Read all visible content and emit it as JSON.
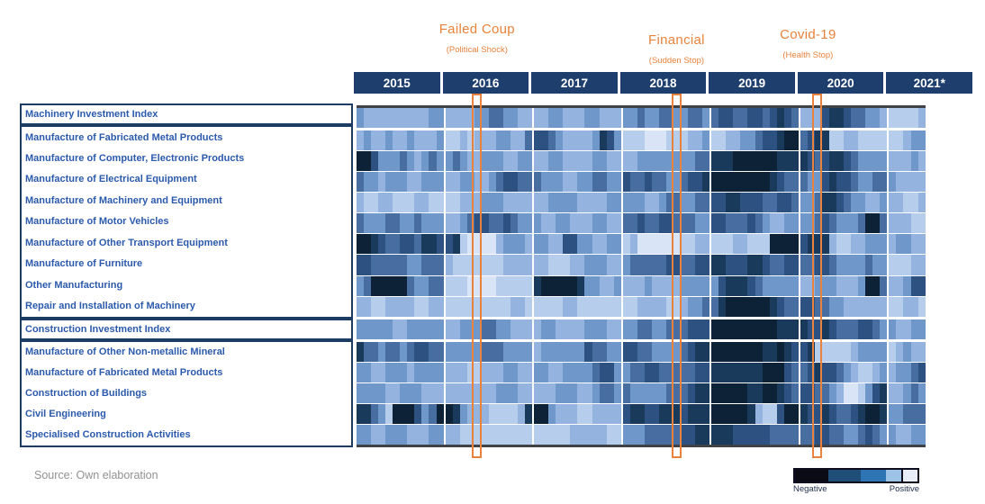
{
  "colors": {
    "header_bg": "#1e3f6d",
    "label_blue": "#2b5aad",
    "annotation_orange": "#e8823c",
    "border_dark": "#3f4348"
  },
  "header": {
    "years": [
      "2015",
      "2016",
      "2017",
      "2018",
      "2019",
      "2020",
      "2021*"
    ]
  },
  "title_annotations": [
    {
      "title": "Failed Coup",
      "subtitle": "(Political Shock)"
    },
    {
      "title": "Financial",
      "subtitle": "(Sudden Stop)"
    },
    {
      "title": "Covid-19",
      "subtitle": "(Health  Stop)"
    }
  ],
  "legend": {
    "negative_label": "Negative",
    "positive_label": "Positive",
    "colors": [
      "#0b0b16",
      "#1f4e79",
      "#2e75b6",
      "#9dc3e6",
      "#e9edf8"
    ],
    "widths_pct": [
      27,
      27,
      20,
      13,
      13
    ]
  },
  "source": "Source: Own elaboration",
  "chart_data": {
    "type": "heatmap",
    "title": "",
    "x_years": [
      "2015",
      "2016",
      "2017",
      "2018",
      "2019",
      "2020",
      "2021*"
    ],
    "months_per_year": [
      12,
      12,
      12,
      12,
      12,
      12,
      5
    ],
    "x_unit": "month",
    "value_scale": "digits 0-7 per monthly cell; 0 = most negative (darkest), 7 = most positive (lightest)",
    "palette": [
      "#0d2137",
      "#1a3a5c",
      "#2d5181",
      "#476da1",
      "#7097c9",
      "#94b3de",
      "#b7cdec",
      "#d9e4f6"
    ],
    "event_markers": [
      {
        "label": "Failed Coup",
        "year": "2016",
        "month": 5
      },
      {
        "label": "Financial",
        "year": "2018",
        "month": 8
      },
      {
        "label": "Covid-19",
        "year": "2020",
        "month": 3
      }
    ],
    "rows": [
      {
        "label": "Machinery Investment Index",
        "group": "machinery-index",
        "values": [
          "455555555544",
          "555544334455",
          "554455544555",
          "443443344334",
          "322332232123",
          "555211233445",
          "66665"
        ]
      },
      {
        "label": "Manufacture of Fabricated Metal Products",
        "group": "machinery",
        "values": [
          "545545545554",
          "665655544553",
          "223455554124",
          "666777666554",
          "665544322100",
          "321166556666",
          "66544"
        ]
      },
      {
        "label": "Manufacture of Computer, Electronic Products",
        "group": "machinery",
        "values": [
          "002444345434",
          "434554445544",
          "554455554455",
          "554444444433",
          "111000000111",
          "123211234444",
          "55545"
        ]
      },
      {
        "label": "Manufacture of Electrical Equipment",
        "group": "machinery",
        "values": [
          "344544455444",
          "554455432233",
          "344455443344",
          "233233443221",
          "000000001233",
          "344212234433",
          "45555"
        ]
      },
      {
        "label": "Manufacture of Machinery and Equipment",
        "group": "machinery",
        "values": [
          "566556665566",
          "665554445555",
          "554444555544",
          "444554334433",
          "221122233223",
          "443112344554",
          "55665"
        ]
      },
      {
        "label": "Manufacture of Motor Vehicles",
        "group": "machinery",
        "values": [
          "344433443444",
          "554322332344",
          "455445554455",
          "332332233344",
          "223332345544",
          "443234443003",
          "55566"
        ]
      },
      {
        "label": "Manufacture of Other Transport Equipment",
        "group": "machinery",
        "values": [
          "001233223112",
          "216777754445",
          "445522445544",
          "657777776655",
          "666556660000",
          "211156655444",
          "54455"
        ]
      },
      {
        "label": "Manufacture of Furniture",
        "group": "machinery",
        "values": [
          "223333344333",
          "566666665555",
          "556665544455",
          "433333223322",
          "112221123322",
          "332234444344",
          "66655"
        ]
      },
      {
        "label": "Other Manufacturing",
        "group": "machinery",
        "values": [
          "430000034433",
          "666777766666",
          "100000144554",
          "555455554444",
          "421112344444",
          "554445554003",
          "55422"
        ]
      },
      {
        "label": "Repair and Installation of Machinery",
        "group": "machinery",
        "values": [
          "556655556655",
          "666666666556",
          "666655666666",
          "665555665443",
          "310000001233",
          "223344555555",
          "66556"
        ]
      },
      {
        "label": "Construction Investment Index",
        "group": "construction-index",
        "values": [
          "444445544444",
          "554443344555",
          "544555544455",
          "443344333222",
          "000000000111",
          "122123332234",
          "45544"
        ]
      },
      {
        "label": "Manufacture of Other Non-metallic Mineral",
        "group": "construction",
        "values": [
          "133433432233",
          "444443334444",
          "544444423344",
          "223344443211",
          "000000011012",
          "216666654444",
          "65455"
        ]
      },
      {
        "label": "Manufacture of Fabricated Metal Products",
        "group": "construction",
        "values": [
          "445544454444",
          "555665554455",
          "445544443224",
          "433223333322",
          "111111100023",
          "321223456654",
          "54432"
        ]
      },
      {
        "label": "Construction of Buildings",
        "group": "construction",
        "values": [
          "444455444555",
          "555555544455",
          "555444554334",
          "344444333211",
          "000001100123",
          "223345776421",
          "55434"
        ]
      },
      {
        "label": "Civil Engineering",
        "group": "construction",
        "values": [
          "113460002430",
          "014555666651",
          "004555665555",
          "211221112111",
          "000001566200",
          "122123321001",
          "44333"
        ]
      },
      {
        "label": "Specialised Construction Activities",
        "group": "construction",
        "values": [
          "445544455544",
          "556666666666",
          "666665555566",
          "444333332211",
          "111222223333",
          "332233443234",
          "45544"
        ]
      }
    ],
    "legend_position": "bottom-right",
    "grid": "white lines between rows and between years"
  }
}
